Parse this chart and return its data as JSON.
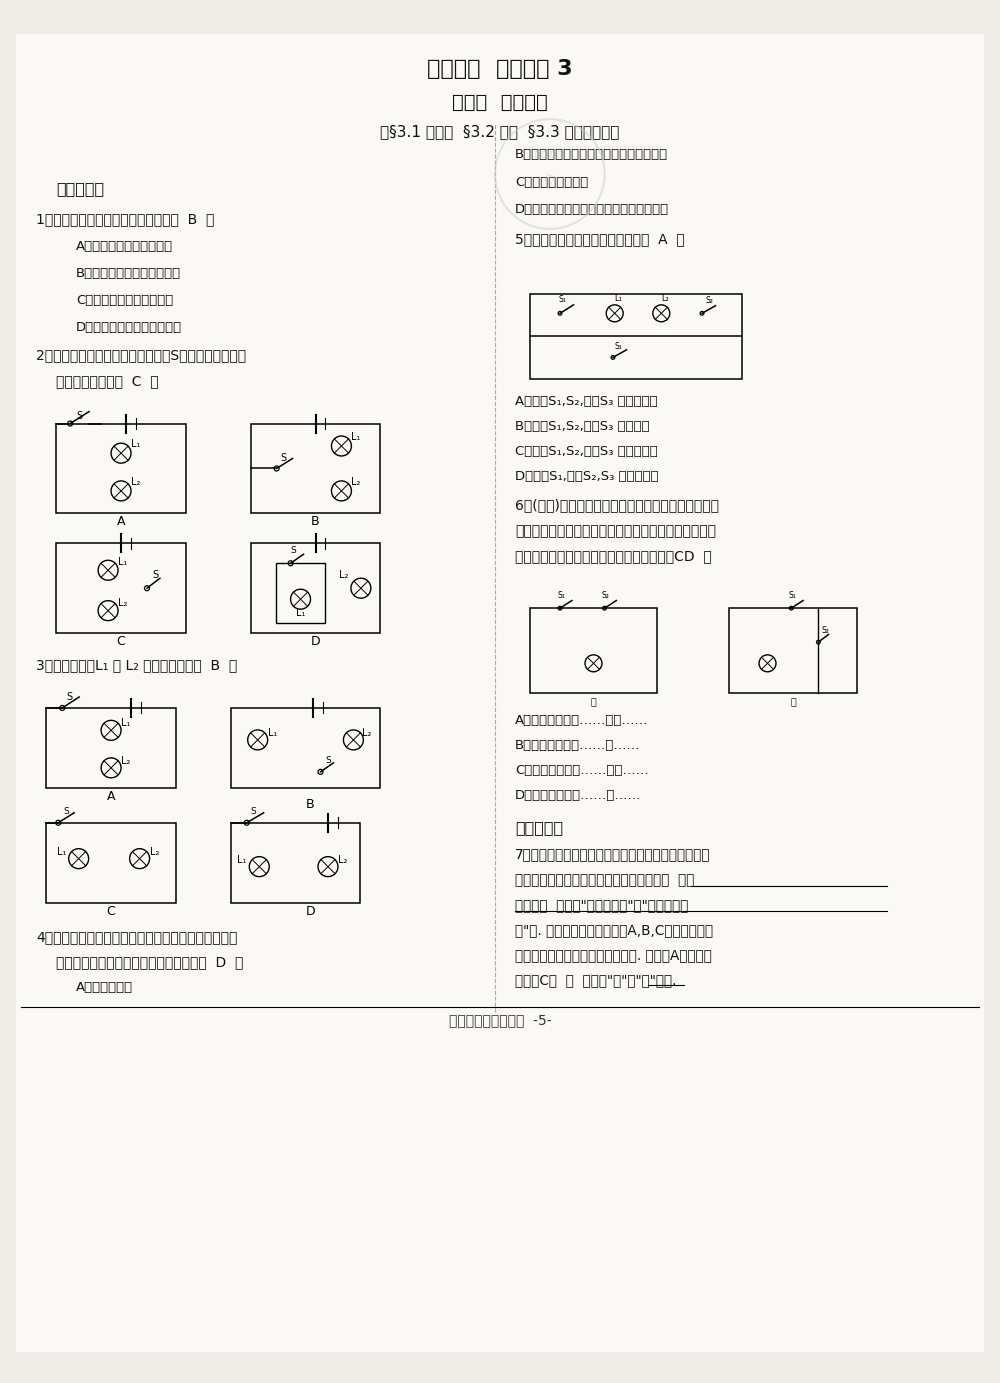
{
  "title1": "小题快练  阶段巩固 3",
  "title2": "第三章  认识电路",
  "title3": "（§3.1 电现象  §3.2 电路  §3.3 电路的连接）",
  "bg_color": "#f5f5f0",
  "text_color": "#1a1a1a"
}
